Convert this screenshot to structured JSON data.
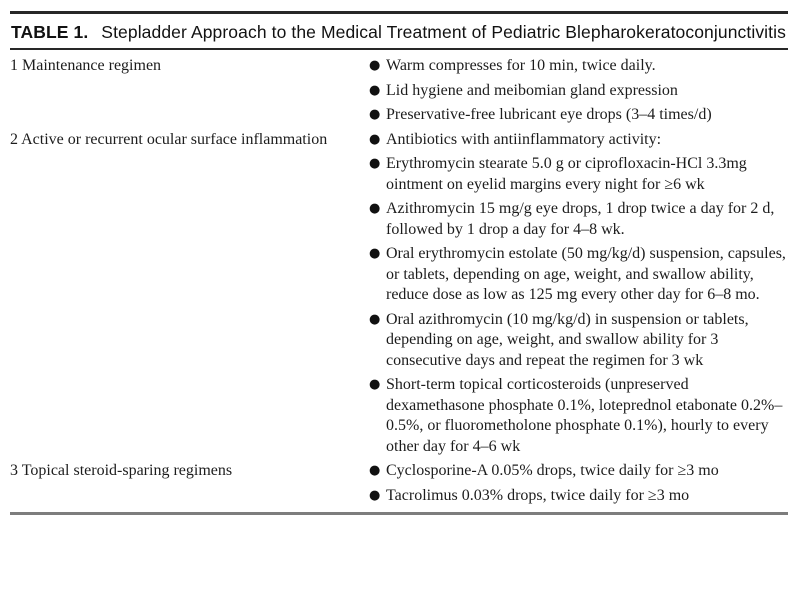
{
  "table": {
    "title_label": "TABLE 1.",
    "title_text": "Stepladder Approach to the Medical Treatment of Pediatric Blepharokeratoconjunctivitis",
    "bullet_char": "●",
    "rows": [
      {
        "step": "1 Maintenance regimen",
        "items": [
          "Warm compresses for 10 min, twice daily.",
          "Lid hygiene and meibomian gland expression",
          "Preservative-free lubricant eye drops (3–4 times/d)"
        ]
      },
      {
        "step": "2 Active or recurrent ocular surface inflammation",
        "items": [
          "Antibiotics with antiinflammatory activity:",
          "Erythromycin stearate 5.0 g or ciprofloxacin-HCl 3.3mg ointment on eyelid margins every night for ≥6 wk",
          "Azithromycin 15 mg/g eye drops, 1 drop twice a day for 2 d, followed by 1 drop a day for 4–8 wk.",
          "Oral erythromycin estolate (50 mg/kg/d) suspension, capsules, or tablets, depending on age, weight, and swallow ability, reduce dose as low as 125 mg every other day for 6–8 mo.",
          "Oral azithromycin (10 mg/kg/d) in suspension or tablets, depending on age, weight, and swallow ability for 3 consecutive days and repeat the regimen for 3 wk",
          "Short-term topical corticosteroids (unpreserved dexamethasone phosphate 0.1%, loteprednol etabonate 0.2%–0.5%, or fluorometholone phosphate 0.1%), hourly to every other day for 4–6 wk"
        ]
      },
      {
        "step": "3 Topical steroid-sparing regimens",
        "items": [
          "Cyclosporine-A 0.05% drops, twice daily for ≥3 mo",
          "Tacrolimus 0.03% drops, twice daily for ≥3 mo"
        ]
      }
    ]
  }
}
